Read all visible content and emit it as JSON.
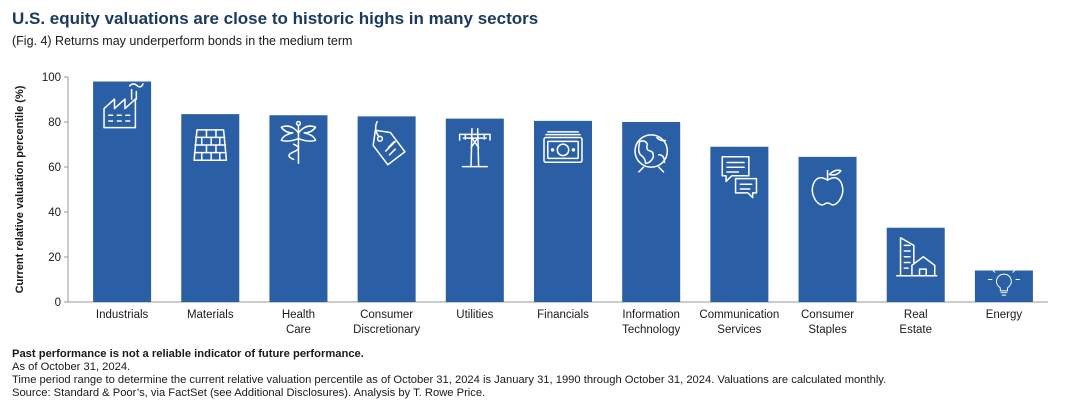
{
  "title": "U.S. equity valuations are close to historic highs in many sectors",
  "subtitle": "(Fig. 4) Returns may underperform bonds in the medium term",
  "footer": {
    "disclaimer": "Past performance is not a reliable indicator of future performance.",
    "as_of": "As of October 31, 2024.",
    "note": "Time period range to determine the current relative valuation percentile as of October 31, 2024 is January 31, 1990 through October 31, 2024. Valuations are calculated monthly.",
    "source": "Source: Standard & Poor’s, via FactSet (see Additional Disclosures). Analysis by T. Rowe Price."
  },
  "colors": {
    "bar": "#2a5fa6",
    "title": "#1b3a60",
    "axis": "#999999"
  },
  "chart_data": {
    "type": "bar",
    "title": "U.S. equity valuations are close to historic highs in many sectors",
    "subtitle": "(Fig. 4) Returns may underperform bonds in the medium term",
    "ylabel": "Current relative valuation percentile (%)",
    "xlabel": "",
    "ylim": [
      0,
      100
    ],
    "yticks": [
      0,
      20,
      40,
      60,
      80,
      100
    ],
    "grid": false,
    "legend": "none",
    "categories": [
      [
        "Industrials"
      ],
      [
        "Materials"
      ],
      [
        "Health",
        "Care"
      ],
      [
        "Consumer",
        "Discretionary"
      ],
      [
        "Utilities"
      ],
      [
        "Financials"
      ],
      [
        "Information",
        "Technology"
      ],
      [
        "Communication",
        "Services"
      ],
      [
        "Consumer",
        "Staples"
      ],
      [
        "Real",
        "Estate"
      ],
      [
        "Energy"
      ]
    ],
    "values": [
      98,
      83.5,
      83,
      82.5,
      81.5,
      80.5,
      80,
      69,
      64.5,
      33,
      14
    ],
    "icons": [
      "factory-icon",
      "bricks-icon",
      "caduceus-icon",
      "price-tag-icon",
      "power-pylon-icon",
      "banknote-icon",
      "globe-icon",
      "chat-bubbles-icon",
      "apple-icon",
      "buildings-house-icon",
      "lightbulb-icon"
    ]
  }
}
